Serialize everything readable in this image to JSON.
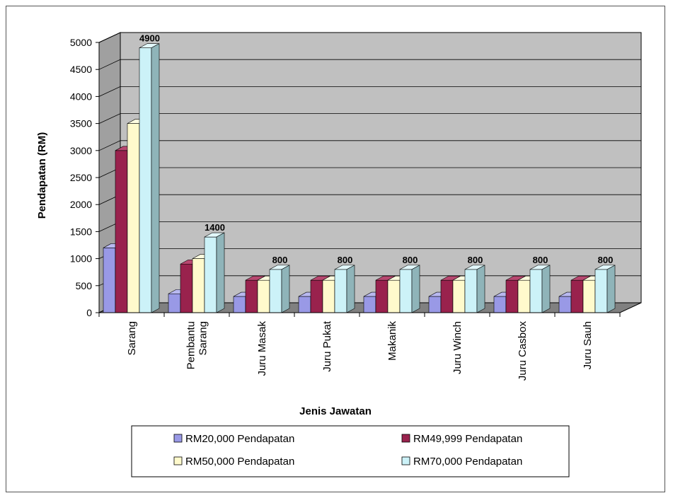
{
  "chart_data": {
    "type": "bar",
    "title": "",
    "xlabel": "Jenis Jawatan",
    "ylabel": "Pendapatan  (RM)",
    "ylim": [
      0,
      5000
    ],
    "yticks": [
      0,
      500,
      1000,
      1500,
      2000,
      2500,
      3000,
      3500,
      4000,
      4500,
      5000
    ],
    "categories": [
      [
        "Sarang"
      ],
      [
        "Pembantu",
        "Sarang"
      ],
      [
        "Juru Masak"
      ],
      [
        "Juru Pukat"
      ],
      [
        "Makanik"
      ],
      [
        "Juru Winch"
      ],
      [
        "Juru Casbox"
      ],
      [
        "Juru Sauh"
      ]
    ],
    "series": [
      {
        "name": "RM20,000 Pendapatan",
        "values": [
          1200,
          350,
          300,
          300,
          300,
          300,
          300,
          300
        ]
      },
      {
        "name": "RM49,999 Pendapatan",
        "values": [
          3000,
          900,
          600,
          600,
          600,
          600,
          600,
          600
        ]
      },
      {
        "name": "RM50,000 Pendapatan",
        "values": [
          3500,
          1000,
          600,
          600,
          600,
          600,
          600,
          600
        ]
      },
      {
        "name": "RM70,000 Pendapatan",
        "values": [
          4900,
          1400,
          800,
          800,
          800,
          800,
          800,
          800
        ]
      }
    ],
    "data_labels": {
      "series_index": 3,
      "labels": [
        "4900",
        "1400",
        "800",
        "800",
        "800",
        "800",
        "800",
        "800"
      ]
    },
    "legend": {
      "placement": "bottom",
      "order": [
        0,
        1,
        2,
        3
      ]
    },
    "colors": {
      "series": [
        "#9999e6",
        "#99224d",
        "#fffacc",
        "#ccf2f8"
      ],
      "series_side": [
        "#6b6bb3",
        "#6e1636",
        "#c8c49a",
        "#8fb4b9"
      ],
      "series_top": [
        "#b8b8f0",
        "#b84870",
        "#fffde0",
        "#e2f8fb"
      ],
      "plot_back": "#c0c0c0",
      "plot_floor": "#808080",
      "plot_wall": "#a0a0a0"
    },
    "grid": true
  }
}
